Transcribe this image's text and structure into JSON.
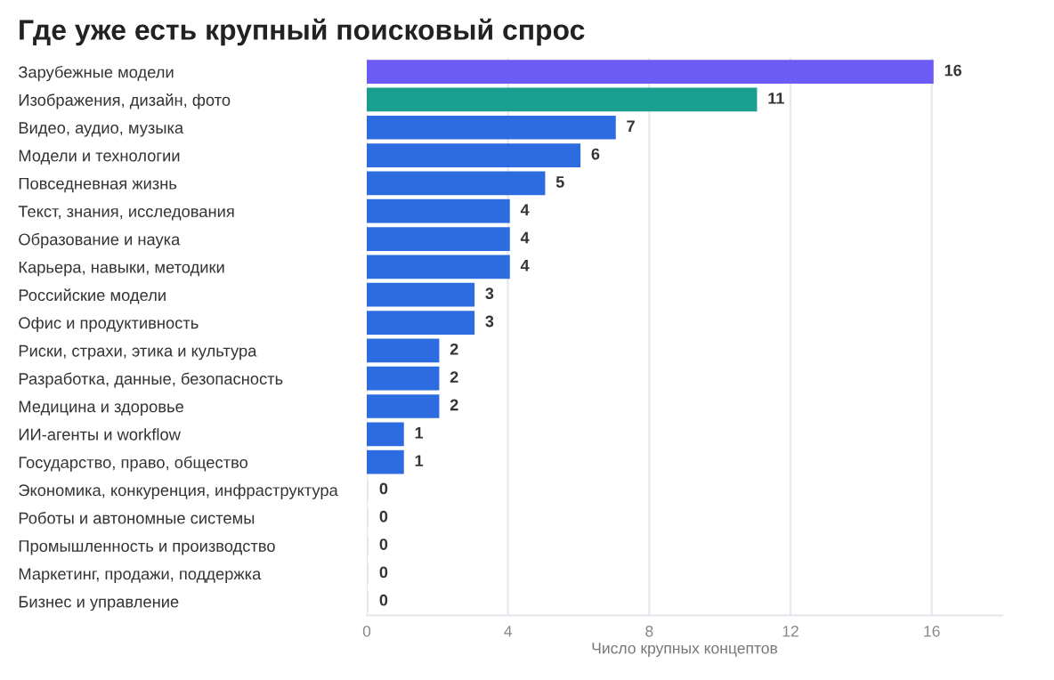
{
  "chart_data": {
    "type": "bar",
    "orientation": "horizontal",
    "title": "Где уже есть крупный поисковый спрос",
    "xlabel": "Число крупных концептов",
    "categories": [
      "Зарубежные модели",
      "Изображения, дизайн, фото",
      "Видео, аудио, музыка",
      "Модели и технологии",
      "Повседневная жизнь",
      "Текст, знания, исследования",
      "Образование и наука",
      "Карьера, навыки, методики",
      "Российские модели",
      "Офис и продуктивность",
      "Риски, страхи, этика и культура",
      "Разработка, данные, безопасность",
      "Медицина и здоровье",
      "ИИ-агенты и workflow",
      "Государство, право, общество",
      "Экономика, конкуренция, инфраструктура",
      "Роботы и автономные системы",
      "Промышленность и производство",
      "Маркетинг, продажи, поддержка",
      "Бизнес и управление"
    ],
    "values": [
      16,
      11,
      7,
      6,
      5,
      4,
      4,
      4,
      3,
      3,
      2,
      2,
      2,
      1,
      1,
      0,
      0,
      0,
      0,
      0
    ],
    "colors": [
      "#6c5cf5",
      "#1a9e8f",
      "#2c6ce0",
      "#2c6ce0",
      "#2c6ce0",
      "#2c6ce0",
      "#2c6ce0",
      "#2c6ce0",
      "#2c6ce0",
      "#2c6ce0",
      "#2c6ce0",
      "#2c6ce0",
      "#2c6ce0",
      "#2c6ce0",
      "#2c6ce0",
      "#e3e6ec",
      "#e3e6ec",
      "#e3e6ec",
      "#e3e6ec",
      "#e3e6ec"
    ],
    "xlim": [
      0,
      18
    ],
    "xticks": [
      0,
      4,
      8,
      12,
      16
    ],
    "grid": "x",
    "data_labels": true
  }
}
